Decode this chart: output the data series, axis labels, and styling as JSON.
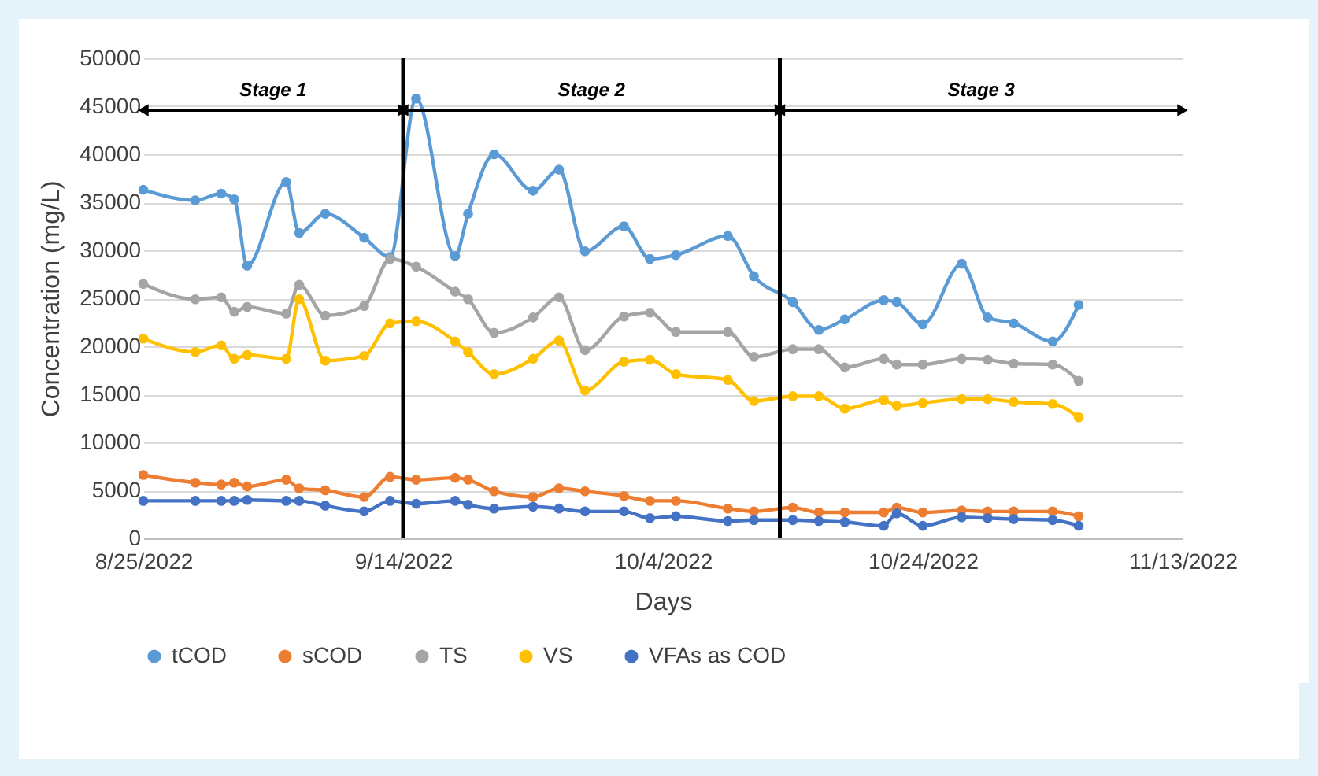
{
  "chart_data": {
    "type": "line",
    "xlabel": "Days",
    "ylabel": "Concentration (mg/L)",
    "x": [
      "2022-08-25",
      "2022-08-29",
      "2022-08-31",
      "2022-09-01",
      "2022-09-02",
      "2022-09-05",
      "2022-09-06",
      "2022-09-08",
      "2022-09-11",
      "2022-09-13",
      "2022-09-15",
      "2022-09-18",
      "2022-09-19",
      "2022-09-21",
      "2022-09-24",
      "2022-09-26",
      "2022-09-28",
      "2022-10-01",
      "2022-10-03",
      "2022-10-05",
      "2022-10-09",
      "2022-10-11",
      "2022-10-14",
      "2022-10-16",
      "2022-10-18",
      "2022-10-21",
      "2022-10-22",
      "2022-10-24",
      "2022-10-27",
      "2022-10-29",
      "2022-10-31",
      "2022-11-03",
      "2022-11-05"
    ],
    "series": [
      {
        "name": "tCOD",
        "color": "#5b9bd5",
        "values": [
          36300,
          35200,
          35900,
          35300,
          28400,
          37100,
          31800,
          33800,
          31300,
          29300,
          45800,
          29400,
          33800,
          40000,
          36200,
          38400,
          29900,
          32500,
          29100,
          29500,
          31500,
          27300,
          24600,
          21700,
          22800,
          24800,
          24600,
          22300,
          28600,
          23000,
          22400,
          20500,
          24300
        ]
      },
      {
        "name": "sCOD",
        "color": "#ed7d31",
        "values": [
          6600,
          5800,
          5600,
          5800,
          5400,
          6100,
          5200,
          5000,
          4300,
          6400,
          6100,
          6300,
          6100,
          4900,
          4300,
          5200,
          4900,
          4400,
          3900,
          3900,
          3100,
          2800,
          3200,
          2700,
          2700,
          2700,
          3200,
          2700,
          2900,
          2800,
          2800,
          2800,
          2300
        ]
      },
      {
        "name": "TS",
        "color": "#a5a5a5",
        "values": [
          26500,
          24900,
          25100,
          23600,
          24100,
          23400,
          26400,
          23200,
          24200,
          29100,
          28300,
          25700,
          24900,
          21400,
          23000,
          25100,
          19600,
          23100,
          23500,
          21500,
          21500,
          18900,
          19700,
          19700,
          17800,
          18700,
          18100,
          18100,
          18700,
          18600,
          18200,
          18100,
          16400
        ]
      },
      {
        "name": "VS",
        "color": "#ffc000",
        "values": [
          20800,
          19400,
          20100,
          18700,
          19100,
          18700,
          24900,
          18500,
          19000,
          22400,
          22600,
          20500,
          19400,
          17100,
          18700,
          20600,
          15400,
          18400,
          18600,
          17100,
          16500,
          14300,
          14800,
          14800,
          13500,
          14400,
          13800,
          14100,
          14500,
          14500,
          14200,
          14000,
          12600
        ]
      },
      {
        "name": "VFAs as COD",
        "color": "#4472c4",
        "values": [
          3900,
          3900,
          3900,
          3900,
          4000,
          3900,
          3900,
          3400,
          2800,
          3900,
          3600,
          3900,
          3500,
          3100,
          3300,
          3100,
          2800,
          2800,
          2100,
          2300,
          1800,
          1900,
          1900,
          1800,
          1700,
          1300,
          2600,
          1300,
          2200,
          2100,
          2000,
          1900,
          1300
        ]
      }
    ],
    "xlim": [
      "2022-08-25",
      "2022-11-13"
    ],
    "xticks": [
      {
        "value": "2022-08-25",
        "label": "8/25/2022"
      },
      {
        "value": "2022-09-14",
        "label": "9/14/2022"
      },
      {
        "value": "2022-10-04",
        "label": "10/4/2022"
      },
      {
        "value": "2022-10-24",
        "label": "10/24/2022"
      },
      {
        "value": "2022-11-13",
        "label": "11/13/2022"
      }
    ],
    "ylim": [
      0,
      50000
    ],
    "yticks": [
      0,
      5000,
      10000,
      15000,
      20000,
      25000,
      30000,
      35000,
      40000,
      45000,
      50000
    ],
    "ref_lines": [
      {
        "axis": "x",
        "value": "2022-09-14",
        "color": "#000000"
      },
      {
        "axis": "x",
        "value": "2022-10-13",
        "color": "#000000"
      }
    ],
    "annotations": [
      "Stage 1",
      "Stage 2",
      "Stage 3"
    ],
    "grid": "y",
    "legend": "bottom",
    "marker": "circle",
    "line_style": "solid"
  }
}
